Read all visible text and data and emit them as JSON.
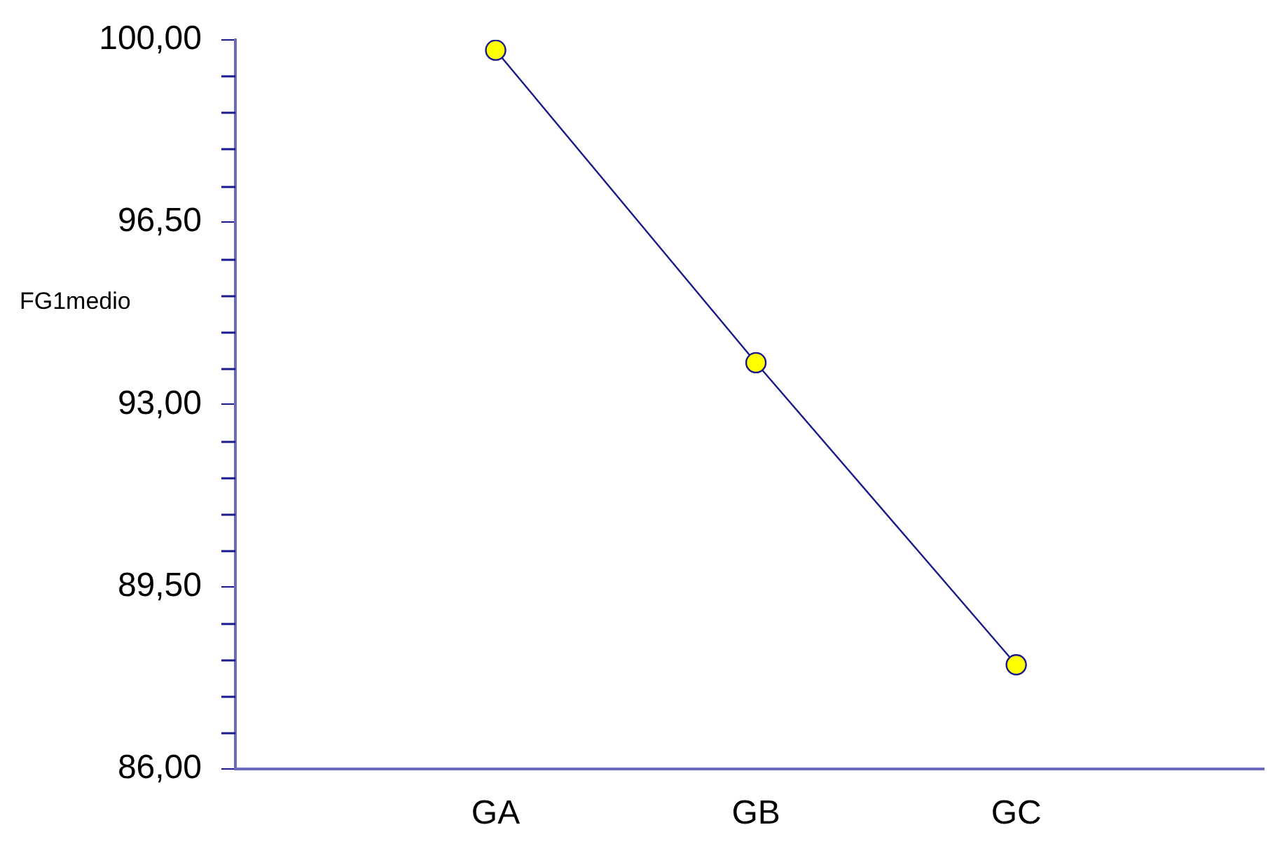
{
  "chart_data": {
    "type": "line",
    "ylabel": "FG1medio",
    "categories": [
      "GA",
      "GB",
      "GC"
    ],
    "series": [
      {
        "color": "#1a1a8c",
        "values": [
          99.8,
          93.8,
          88.0
        ]
      }
    ],
    "ylim": [
      86,
      100
    ],
    "yticks": [
      {
        "value": 86,
        "label": "86,00"
      },
      {
        "value": 86.7,
        "label": null
      },
      {
        "value": 87.4,
        "label": null
      },
      {
        "value": 88.1,
        "label": null
      },
      {
        "value": 88.8,
        "label": null
      },
      {
        "value": 89.5,
        "label": "89,50"
      },
      {
        "value": 90.2,
        "label": null
      },
      {
        "value": 90.9,
        "label": null
      },
      {
        "value": 91.6,
        "label": null
      },
      {
        "value": 92.3,
        "label": null
      },
      {
        "value": 93,
        "label": "93,00"
      },
      {
        "value": 93.7,
        "label": null
      },
      {
        "value": 94.4,
        "label": null
      },
      {
        "value": 95.1,
        "label": null
      },
      {
        "value": 95.8,
        "label": null
      },
      {
        "value": 96.5,
        "label": "96,50"
      },
      {
        "value": 97.2,
        "label": null
      },
      {
        "value": 97.9,
        "label": null
      },
      {
        "value": 98.6,
        "label": null
      },
      {
        "value": 99.3,
        "label": null
      },
      {
        "value": 100,
        "label": "100,00"
      }
    ],
    "marker": "circle",
    "line_style": "solid",
    "grid": false,
    "legend": false
  }
}
